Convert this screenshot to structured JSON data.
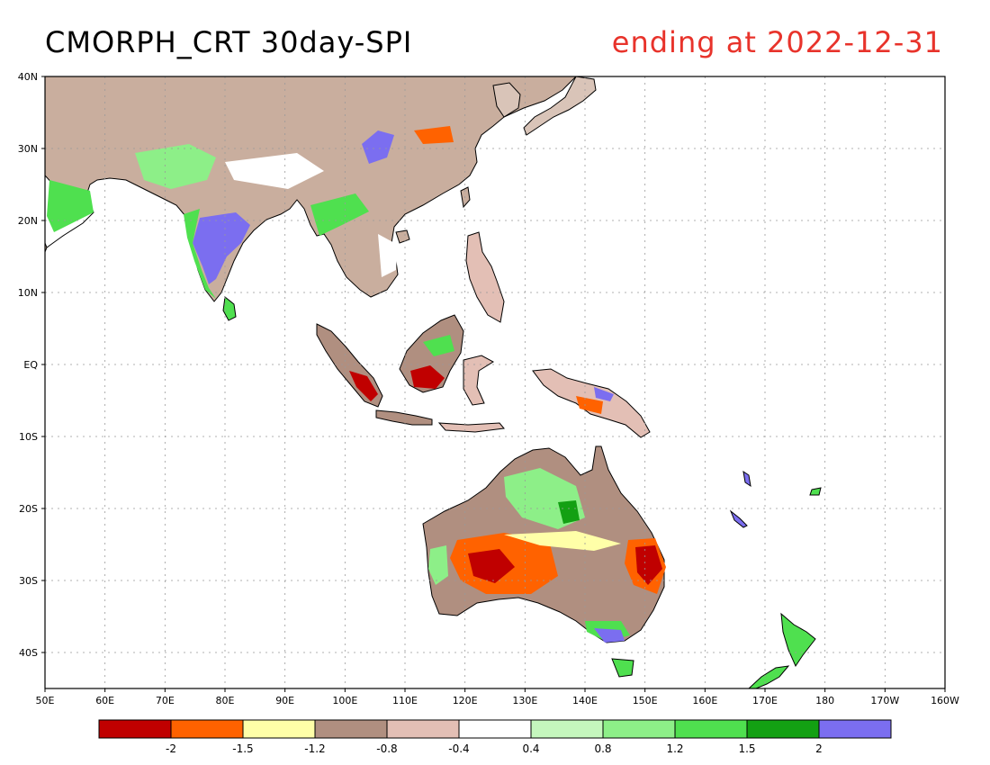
{
  "title": {
    "left": "CMORPH_CRT 30day-SPI",
    "right": "ending at 2022-12-31"
  },
  "colors": {
    "title_right": "#e8332b",
    "land_outline": "#000000",
    "grid": "#999999"
  },
  "map": {
    "lon_range": [
      50,
      200
    ],
    "lat_range": [
      -45,
      40
    ],
    "lat_ticks": [
      {
        "lat": 40,
        "label": "40N"
      },
      {
        "lat": 30,
        "label": "30N"
      },
      {
        "lat": 20,
        "label": "20N"
      },
      {
        "lat": 10,
        "label": "10N"
      },
      {
        "lat": 0,
        "label": "EQ"
      },
      {
        "lat": -10,
        "label": "10S"
      },
      {
        "lat": -20,
        "label": "20S"
      },
      {
        "lat": -30,
        "label": "30S"
      },
      {
        "lat": -40,
        "label": "40S"
      }
    ],
    "lon_ticks": [
      {
        "lon": 50,
        "label": "50E"
      },
      {
        "lon": 60,
        "label": "60E"
      },
      {
        "lon": 70,
        "label": "70E"
      },
      {
        "lon": 80,
        "label": "80E"
      },
      {
        "lon": 90,
        "label": "90E"
      },
      {
        "lon": 100,
        "label": "100E"
      },
      {
        "lon": 110,
        "label": "110E"
      },
      {
        "lon": 120,
        "label": "120E"
      },
      {
        "lon": 130,
        "label": "130E"
      },
      {
        "lon": 140,
        "label": "140E"
      },
      {
        "lon": 150,
        "label": "150E"
      },
      {
        "lon": 160,
        "label": "160E"
      },
      {
        "lon": 170,
        "label": "170E"
      },
      {
        "lon": 180,
        "label": "180"
      },
      {
        "lon": 190,
        "label": "170W"
      },
      {
        "lon": 200,
        "label": "160W"
      }
    ],
    "grid": true
  },
  "colorbar": {
    "colors": [
      "#c00000",
      "#ff6200",
      "#ffffa8",
      "#b08f80",
      "#e3bfb5",
      "#ffffff",
      "#c5f7bd",
      "#8def88",
      "#4fe04f",
      "#13a013",
      "#7b6ef0"
    ],
    "labels": [
      "-2",
      "-1.5",
      "-1.2",
      "-0.8",
      "-0.4",
      "0.4",
      "0.8",
      "1.2",
      "1.5",
      "2"
    ]
  }
}
